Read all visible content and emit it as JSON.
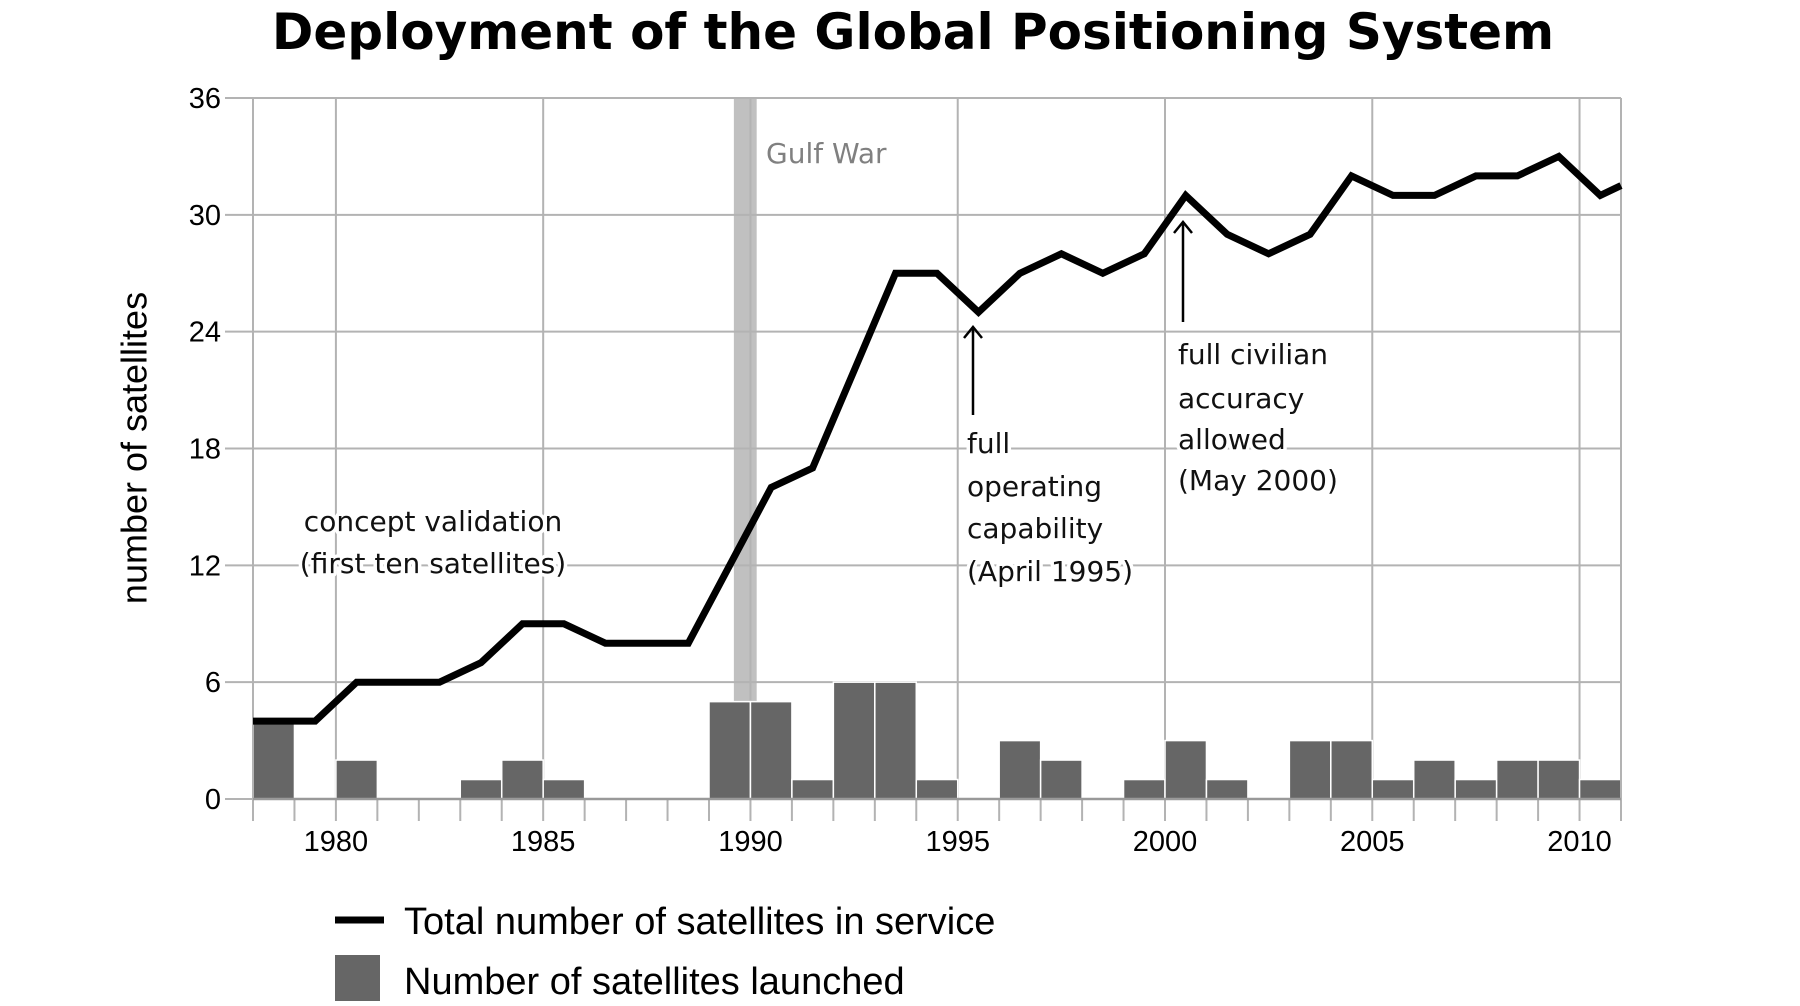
{
  "chart_data": {
    "type": "bar+line",
    "title": "Deployment of the Global Positioning System",
    "xlabel": "",
    "ylabel": "number of satellites",
    "xlim": [
      1978,
      2011
    ],
    "ylim": [
      0,
      36
    ],
    "grid": true,
    "yticks": [
      0,
      6,
      12,
      18,
      24,
      30,
      36
    ],
    "xticks": [
      1980,
      1985,
      1990,
      1995,
      2000,
      2005,
      2010
    ],
    "colors": {
      "line": "#000000",
      "bars": "#666666",
      "grid": "#b3b3b3",
      "gulf_band": "#c0c0c0",
      "gulf_label": "#808080"
    },
    "series": [
      {
        "name": "Total number of satellites in service",
        "type": "line",
        "points": [
          [
            1978,
            4
          ],
          [
            1979.5,
            4
          ],
          [
            1980.5,
            6
          ],
          [
            1981.5,
            6
          ],
          [
            1982.5,
            6
          ],
          [
            1983.5,
            7
          ],
          [
            1984.5,
            9
          ],
          [
            1985.5,
            9
          ],
          [
            1986.5,
            8
          ],
          [
            1987.5,
            8
          ],
          [
            1988.5,
            8
          ],
          [
            1989.5,
            12
          ],
          [
            1990.5,
            16
          ],
          [
            1991.5,
            17
          ],
          [
            1992.5,
            22
          ],
          [
            1993.5,
            27
          ],
          [
            1994.5,
            27
          ],
          [
            1995.5,
            25
          ],
          [
            1996.5,
            27
          ],
          [
            1997.5,
            28
          ],
          [
            1998.5,
            27
          ],
          [
            1999.5,
            28
          ],
          [
            2000.5,
            31
          ],
          [
            2001.5,
            29
          ],
          [
            2002.5,
            28
          ],
          [
            2003.5,
            29
          ],
          [
            2004.5,
            32
          ],
          [
            2005.5,
            31
          ],
          [
            2006.5,
            31
          ],
          [
            2007.5,
            32
          ],
          [
            2008.5,
            32
          ],
          [
            2009.5,
            33
          ],
          [
            2010.5,
            31
          ],
          [
            2011,
            31.5
          ]
        ]
      },
      {
        "name": "Number of satellites launched",
        "type": "bar",
        "years": [
          1978,
          1979,
          1980,
          1981,
          1982,
          1983,
          1984,
          1985,
          1986,
          1987,
          1988,
          1989,
          1990,
          1991,
          1992,
          1993,
          1994,
          1995,
          1996,
          1997,
          1998,
          1999,
          2000,
          2001,
          2002,
          2003,
          2004,
          2005,
          2006,
          2007,
          2008,
          2009,
          2010
        ],
        "values": [
          4,
          0,
          2,
          0,
          0,
          1,
          2,
          1,
          0,
          0,
          0,
          5,
          5,
          1,
          6,
          6,
          1,
          0,
          3,
          2,
          0,
          1,
          3,
          1,
          0,
          3,
          3,
          1,
          2,
          1,
          2,
          2,
          1
        ]
      }
    ],
    "shaded_region": {
      "label": "Gulf War",
      "x_range": [
        1989.6,
        1990.15
      ]
    },
    "annotations": [
      {
        "id": "concept",
        "lines": [
          "concept validation",
          "(first ten satellites)"
        ],
        "arrow": false
      },
      {
        "id": "foc",
        "lines": [
          "full",
          "operating",
          "capability",
          "(April 1995)"
        ],
        "arrow_points_to": [
          1995.3,
          25
        ]
      },
      {
        "id": "civilian",
        "lines": [
          "full civilian",
          "accuracy",
          "allowed",
          "(May 2000)"
        ],
        "arrow_points_to": [
          2000.4,
          30
        ]
      }
    ],
    "legend": {
      "placement": "bottom-left",
      "entries": [
        {
          "label": "Total number of satellites in service",
          "marker": "line"
        },
        {
          "label": "Number of satellites launched",
          "marker": "square"
        }
      ]
    }
  }
}
